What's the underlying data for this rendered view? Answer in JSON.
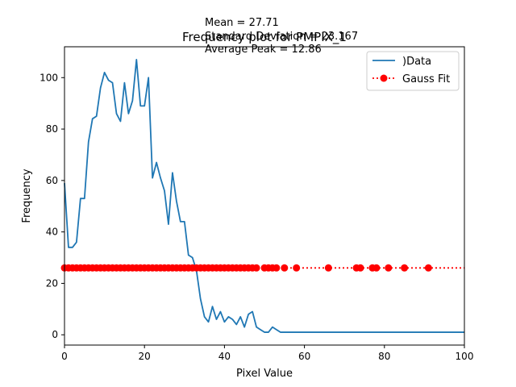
{
  "chart_data": {
    "type": "line",
    "title": "Frequency plot for PMPIX_1",
    "annotations": [
      "Mean = 27.71",
      "Standard Deviation = 23.167",
      "Average Peak = 12.86"
    ],
    "xlabel": "Pixel Value",
    "ylabel": "Frequency",
    "xlim": [
      0,
      100
    ],
    "ylim": [
      -4,
      112
    ],
    "xticks": [
      0,
      20,
      40,
      60,
      80,
      100
    ],
    "yticks": [
      0,
      20,
      40,
      60,
      80,
      100
    ],
    "grid": false,
    "legend_position": "top-right",
    "series": [
      {
        "name": ")Data",
        "style": "solid line",
        "color": "#1f77b4",
        "x": [
          0,
          1,
          2,
          3,
          4,
          5,
          6,
          7,
          8,
          9,
          10,
          11,
          12,
          13,
          14,
          15,
          16,
          17,
          18,
          19,
          20,
          21,
          22,
          23,
          24,
          25,
          26,
          27,
          28,
          29,
          30,
          31,
          32,
          33,
          34,
          35,
          36,
          37,
          38,
          39,
          40,
          41,
          42,
          43,
          44,
          45,
          46,
          47,
          48,
          49,
          50,
          51,
          52,
          53,
          54,
          55,
          56,
          57,
          58,
          59,
          60,
          61,
          62,
          63,
          64,
          65,
          66,
          67,
          68,
          69,
          70,
          71,
          72,
          73,
          74,
          75,
          76,
          77,
          78,
          79,
          80,
          81,
          82,
          83,
          84,
          85,
          86,
          87,
          88,
          89,
          90,
          91,
          92,
          93,
          94,
          95,
          96,
          97,
          98,
          99,
          100
        ],
        "values": [
          59,
          34,
          34,
          36,
          53,
          53,
          75,
          84,
          85,
          96,
          102,
          99,
          98,
          86,
          83,
          98,
          86,
          91,
          107,
          89,
          89,
          100,
          61,
          67,
          61,
          56,
          43,
          63,
          52,
          44,
          44,
          31,
          30,
          25,
          14,
          7,
          5,
          11,
          6,
          9,
          5,
          7,
          6,
          4,
          7,
          3,
          8,
          9,
          3,
          2,
          1,
          1,
          3,
          2,
          1,
          1,
          1,
          1,
          1,
          1,
          1,
          1,
          1,
          1,
          1,
          1,
          1,
          1,
          1,
          1,
          1,
          1,
          1,
          1,
          1,
          1,
          1,
          1,
          1,
          1,
          1,
          1,
          1,
          1,
          1,
          1,
          1,
          1,
          1,
          1,
          1,
          1,
          1,
          1,
          1,
          1,
          1,
          1,
          1,
          1,
          1
        ]
      },
      {
        "name": "Gauss Fit",
        "style": "dotted line with circle markers",
        "color": "#ff0000",
        "x": [
          0,
          1,
          2,
          3,
          4,
          5,
          6,
          7,
          8,
          9,
          10,
          11,
          12,
          13,
          14,
          15,
          16,
          17,
          18,
          19,
          20,
          21,
          22,
          23,
          24,
          25,
          26,
          27,
          28,
          29,
          30,
          31,
          32,
          33,
          34,
          35,
          36,
          37,
          38,
          39,
          40,
          41,
          42,
          43,
          44,
          45,
          46,
          47,
          48,
          50,
          51,
          52,
          53,
          55,
          58,
          66,
          73,
          74,
          77,
          78,
          81,
          85,
          91
        ],
        "values": [
          26,
          26,
          26,
          26,
          26,
          26,
          26,
          26,
          26,
          26,
          26,
          26,
          26,
          26,
          26,
          26,
          26,
          26,
          26,
          26,
          26,
          26,
          26,
          26,
          26,
          26,
          26,
          26,
          26,
          26,
          26,
          26,
          26,
          26,
          26,
          26,
          26,
          26,
          26,
          26,
          26,
          26,
          26,
          26,
          26,
          26,
          26,
          26,
          26,
          26,
          26,
          26,
          26,
          26,
          26,
          26,
          26,
          26,
          26,
          26,
          26,
          26,
          26
        ],
        "line_extends_to_x": 100
      }
    ]
  }
}
